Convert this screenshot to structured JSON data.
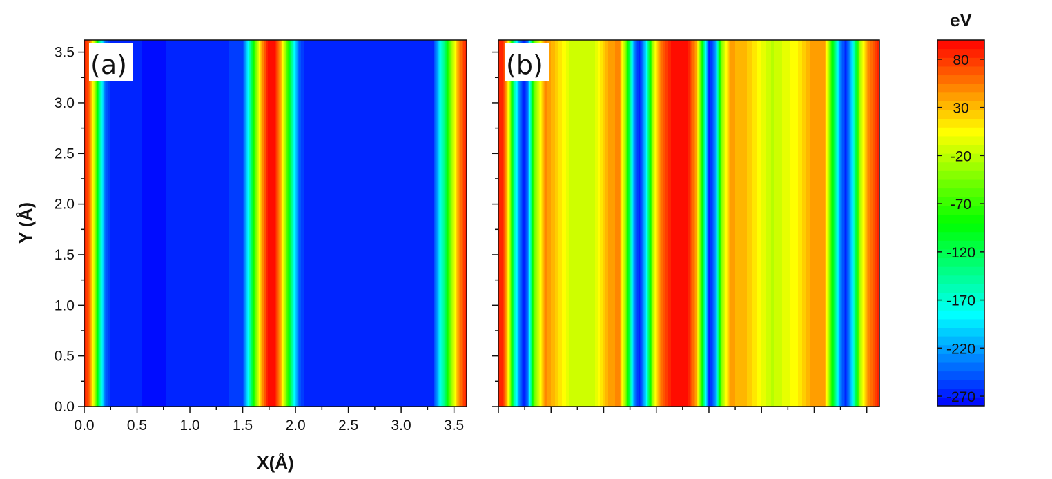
{
  "chart_data": [
    {
      "type": "heatmap",
      "panel_label": "(a)",
      "xlabel": "X(Å)",
      "ylabel": "Y (Å)",
      "xlim": [
        0.0,
        3.62
      ],
      "ylim": [
        0.0,
        3.62
      ],
      "xticks": [
        "0.0",
        "0.5",
        "1.0",
        "1.5",
        "2.0",
        "2.5",
        "3.0",
        "3.5"
      ],
      "yticks": [
        "0.0",
        "0.5",
        "1.0",
        "1.5",
        "2.0",
        "2.5",
        "3.0",
        "3.5"
      ],
      "variation_axis": "x",
      "profile": {
        "x": [
          0.0,
          0.05,
          0.1,
          0.15,
          0.2,
          0.25,
          0.3,
          0.4,
          0.7,
          1.5,
          1.56,
          1.62,
          1.68,
          1.74,
          1.8,
          1.86,
          1.92,
          1.98,
          2.04,
          2.1,
          2.2,
          3.3,
          3.36,
          3.42,
          3.48,
          3.54,
          3.62
        ],
        "value": [
          95,
          60,
          -20,
          -150,
          -240,
          -265,
          -270,
          -270,
          -272,
          -260,
          -170,
          -60,
          40,
          95,
          95,
          40,
          -60,
          -170,
          -250,
          -268,
          -270,
          -270,
          -200,
          -120,
          -30,
          40,
          95
        ]
      }
    },
    {
      "type": "heatmap",
      "panel_label": "(b)",
      "xlabel": "",
      "ylabel": "",
      "xlim": [
        0.0,
        3.62
      ],
      "ylim": [
        0.0,
        3.62
      ],
      "xticks": [],
      "yticks": [],
      "variation_axis": "x",
      "profile": {
        "x": [
          0.0,
          0.05,
          0.1,
          0.15,
          0.2,
          0.24,
          0.28,
          0.34,
          0.45,
          0.7,
          0.9,
          1.05,
          1.15,
          1.22,
          1.29,
          1.34,
          1.4,
          1.47,
          1.55,
          1.65,
          1.8,
          1.88,
          1.94,
          2.0,
          2.06,
          2.12,
          2.2,
          2.35,
          2.6,
          2.85,
          3.0,
          3.1,
          3.18,
          3.25,
          3.3,
          3.36,
          3.44,
          3.52,
          3.62
        ],
        "value": [
          90,
          80,
          0,
          -150,
          -230,
          -270,
          -240,
          -50,
          50,
          -15,
          -15,
          40,
          50,
          -60,
          -230,
          -270,
          -200,
          -20,
          60,
          95,
          95,
          40,
          -100,
          -270,
          -230,
          -40,
          40,
          30,
          -20,
          10,
          45,
          40,
          -100,
          -230,
          -270,
          -200,
          -20,
          50,
          90
        ]
      }
    }
  ],
  "colorbar": {
    "title": "eV",
    "min": -280,
    "max": 100,
    "levels": 42,
    "ticks": [
      80,
      30,
      -20,
      -70,
      -120,
      -170,
      -220,
      -270
    ],
    "tick_labels": [
      "80",
      "30",
      "-20",
      "-70",
      "-120",
      "-170",
      "-220",
      "-270"
    ],
    "colormap": [
      "#0000ff",
      "#00ffff",
      "#00ff00",
      "#ffff00",
      "#ff0000"
    ]
  }
}
